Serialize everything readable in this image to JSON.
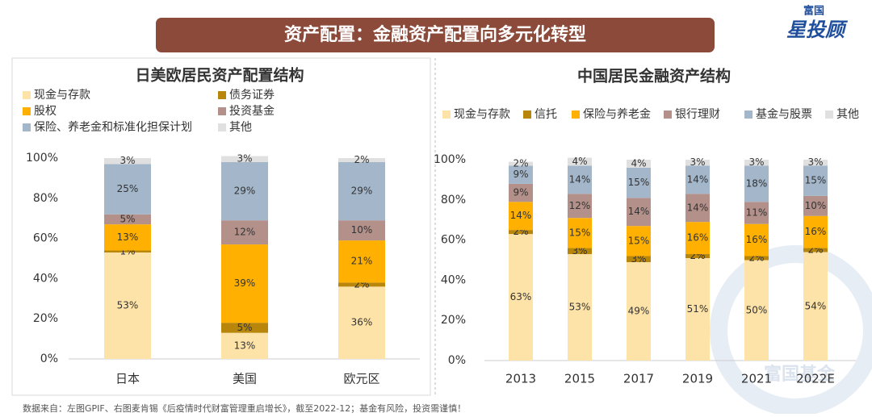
{
  "header": {
    "title": "资产配置：金融资产配置向多元化转型",
    "logo_top": "富国",
    "logo_main": "星投顾"
  },
  "watermark": "富国基金",
  "source": "数据来自：左图GPIF、右图麦肯锡《后疫情时代财富管理重启增长》，截至2022-12；基金有风险，投资需谨慎！",
  "chart_data": [
    {
      "type": "stacked_bar",
      "title": "日美欧居民资产配置结构",
      "categories": [
        "日本",
        "美国",
        "欧元区"
      ],
      "ylim": [
        0,
        100
      ],
      "yticks": [
        {
          "value": 0,
          "label": "0%"
        },
        {
          "value": 20,
          "label": "20%"
        },
        {
          "value": 40,
          "label": "40%"
        },
        {
          "value": 60,
          "label": "60%"
        },
        {
          "value": 80,
          "label": "80%"
        },
        {
          "value": 100,
          "label": "100%"
        }
      ],
      "series": [
        {
          "name": "现金与存款",
          "color": "#fde3a7",
          "values": [
            53,
            13,
            36
          ],
          "value_labels": [
            "53%",
            "13%",
            "36%"
          ]
        },
        {
          "name": "债务证券",
          "color": "#b8860b",
          "values": [
            1,
            5,
            2
          ],
          "value_labels": [
            "1%",
            "5%",
            "2%"
          ]
        },
        {
          "name": "股权",
          "color": "#ffb000",
          "values": [
            13,
            39,
            21
          ],
          "value_labels": [
            "13%",
            "39%",
            "21%"
          ]
        },
        {
          "name": "投资基金",
          "color": "#b3918a",
          "values": [
            5,
            12,
            10
          ],
          "value_labels": [
            "5%",
            "12%",
            "10%"
          ]
        },
        {
          "name": "保险、养老金和标准化担保计划",
          "color": "#a3b6ca",
          "values": [
            25,
            29,
            29
          ],
          "value_labels": [
            "25%",
            "29%",
            "29%"
          ]
        },
        {
          "name": "其他",
          "color": "#e0e0e0",
          "values": [
            3,
            3,
            2
          ],
          "value_labels": [
            "3%",
            "3%",
            "2%"
          ]
        }
      ]
    },
    {
      "type": "stacked_bar",
      "title": "中国居民金融资产结构",
      "categories": [
        "2013",
        "2015",
        "2017",
        "2019",
        "2021",
        "2022E"
      ],
      "ylim": [
        0,
        100
      ],
      "yticks": [
        {
          "value": 0,
          "label": "0%"
        },
        {
          "value": 20,
          "label": "20%"
        },
        {
          "value": 40,
          "label": "40%"
        },
        {
          "value": 60,
          "label": "60%"
        },
        {
          "value": 80,
          "label": "80%"
        },
        {
          "value": 100,
          "label": "100%"
        }
      ],
      "series": [
        {
          "name": "现金与存款",
          "color": "#fde3a7",
          "values": [
            63,
            53,
            49,
            51,
            50,
            54
          ],
          "value_labels": [
            "63%",
            "53%",
            "49%",
            "51%",
            "50%",
            "54%"
          ]
        },
        {
          "name": "信托",
          "color": "#b8860b",
          "values": [
            2,
            3,
            3,
            2,
            2,
            2
          ],
          "value_labels": [
            "2%",
            "3%",
            "3%",
            "2%",
            "2%",
            "2%"
          ]
        },
        {
          "name": "保险与养老金",
          "color": "#ffb000",
          "values": [
            14,
            15,
            15,
            16,
            16,
            16
          ],
          "value_labels": [
            "14%",
            "15%",
            "15%",
            "16%",
            "16%",
            "16%"
          ]
        },
        {
          "name": "银行理财",
          "color": "#b3918a",
          "values": [
            9,
            12,
            14,
            14,
            11,
            10
          ],
          "value_labels": [
            "9%",
            "12%",
            "14%",
            "14%",
            "11%",
            "10%"
          ]
        },
        {
          "name": "基金与股票",
          "color": "#a3b6ca",
          "values": [
            9,
            14,
            15,
            14,
            18,
            15
          ],
          "value_labels": [
            "9%",
            "14%",
            "15%",
            "14%",
            "18%",
            "15%"
          ]
        },
        {
          "name": "其他",
          "color": "#e0e0e0",
          "values": [
            2,
            4,
            4,
            3,
            3,
            3
          ],
          "value_labels": [
            "2%",
            "4%",
            "4%",
            "3%",
            "3%",
            "3%"
          ]
        }
      ]
    }
  ]
}
